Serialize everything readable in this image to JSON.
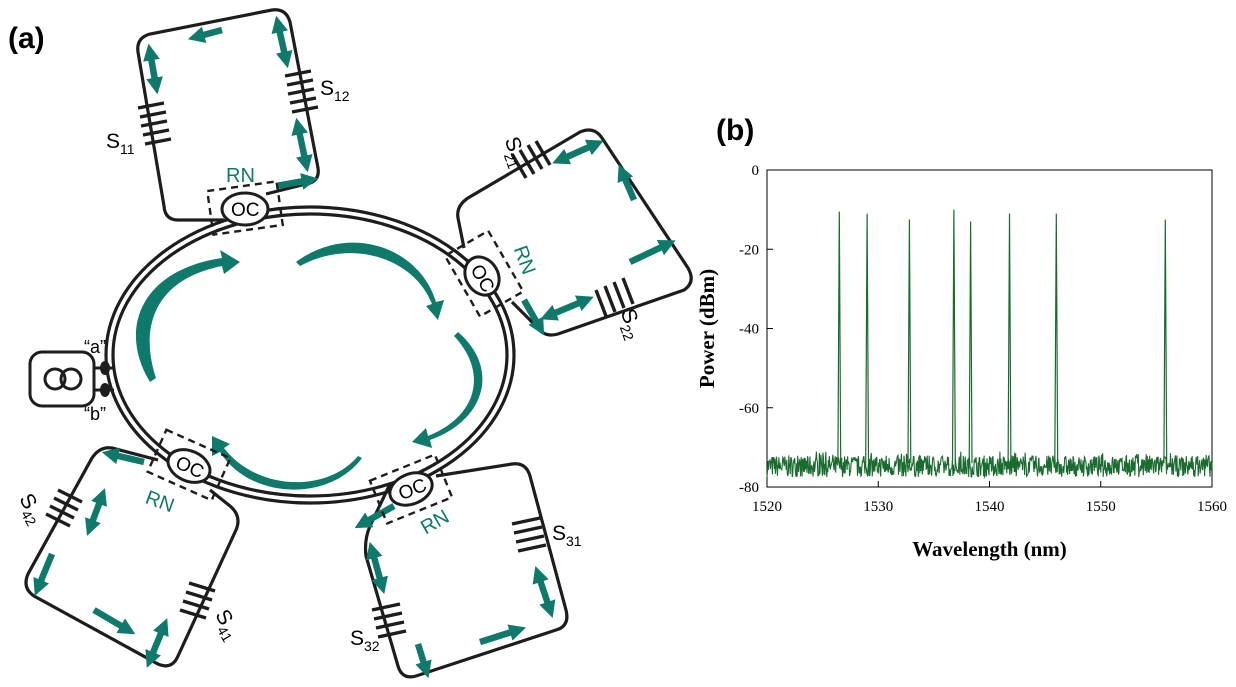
{
  "panel_a": {
    "label": "(a)",
    "sensors": [
      "S11",
      "S12",
      "S21",
      "S22",
      "S31",
      "S32",
      "S41",
      "S42"
    ],
    "rn_label": "RN",
    "oc_label": "OC",
    "port_a": "“a”",
    "port_b": "“b”",
    "colors": {
      "accent": "#0f7a6b",
      "line": "#1d1d1b"
    }
  },
  "panel_b": {
    "label": "(b)"
  },
  "chart_data": {
    "type": "line",
    "xlabel": "Wavelength (nm)",
    "ylabel": "Power (dBm)",
    "xlim": [
      1520,
      1560
    ],
    "ylim": [
      -80,
      0
    ],
    "xticks": [
      1520,
      1530,
      1540,
      1550,
      1560
    ],
    "yticks": [
      0,
      -20,
      -40,
      -60,
      -80
    ],
    "noise_floor_dbm": [
      -80,
      -70
    ],
    "series_color": "#1a6b2f",
    "peaks": [
      {
        "x": 1526.5,
        "y": -10.5
      },
      {
        "x": 1529.0,
        "y": -11.0
      },
      {
        "x": 1532.8,
        "y": -12.5
      },
      {
        "x": 1536.8,
        "y": -10.0
      },
      {
        "x": 1538.3,
        "y": -13.0
      },
      {
        "x": 1541.8,
        "y": -11.0
      },
      {
        "x": 1546.0,
        "y": -11.0
      },
      {
        "x": 1555.8,
        "y": -12.5
      }
    ]
  }
}
